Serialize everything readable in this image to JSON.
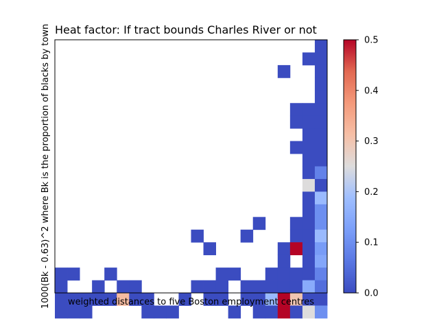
{
  "chart_data": {
    "type": "heatmap",
    "title": "Heat factor: If tract bounds Charles River or not",
    "xlabel": "weighted distances to five Boston employment centres",
    "ylabel": "1000(Bk - 0.63)^2 where Bk is the proportion of blacks by town",
    "n_cols": 22,
    "n_rows": 20,
    "color_range": [
      0,
      0.5
    ],
    "colormap": "coolwarm",
    "colorbar_ticks": [
      "0.0",
      "0.1",
      "0.2",
      "0.3",
      "0.4",
      "0.5"
    ],
    "colorbar_tick_values": [
      0,
      0.1,
      0.2,
      0.3,
      0.4,
      0.5
    ],
    "cells": [
      [
        0,
        21,
        0
      ],
      [
        1,
        20,
        0
      ],
      [
        1,
        21,
        0
      ],
      [
        2,
        18,
        0
      ],
      [
        2,
        21,
        0
      ],
      [
        3,
        21,
        0
      ],
      [
        4,
        21,
        0
      ],
      [
        5,
        19,
        0
      ],
      [
        5,
        20,
        0
      ],
      [
        5,
        21,
        0
      ],
      [
        6,
        19,
        0
      ],
      [
        6,
        20,
        0
      ],
      [
        6,
        21,
        0
      ],
      [
        7,
        20,
        0
      ],
      [
        7,
        21,
        0
      ],
      [
        8,
        19,
        0
      ],
      [
        8,
        20,
        0
      ],
      [
        8,
        21,
        0
      ],
      [
        9,
        20,
        0
      ],
      [
        9,
        21,
        0
      ],
      [
        10,
        20,
        0
      ],
      [
        10,
        21,
        0.08
      ],
      [
        11,
        20,
        0.25
      ],
      [
        11,
        21,
        0
      ],
      [
        12,
        20,
        0
      ],
      [
        12,
        21,
        0.18
      ],
      [
        13,
        20,
        0
      ],
      [
        13,
        21,
        0.1
      ],
      [
        14,
        16,
        0
      ],
      [
        14,
        19,
        0
      ],
      [
        14,
        20,
        0
      ],
      [
        14,
        21,
        0.1
      ],
      [
        15,
        11,
        0
      ],
      [
        15,
        15,
        0
      ],
      [
        15,
        19,
        0
      ],
      [
        15,
        20,
        0
      ],
      [
        15,
        21,
        0.18
      ],
      [
        16,
        12,
        0
      ],
      [
        16,
        18,
        0
      ],
      [
        16,
        19,
        0.5
      ],
      [
        16,
        20,
        0
      ],
      [
        16,
        21,
        0.12
      ],
      [
        17,
        18,
        0
      ],
      [
        17,
        20,
        0
      ],
      [
        17,
        21,
        0.14
      ],
      [
        18,
        0,
        0
      ],
      [
        18,
        1,
        0
      ],
      [
        18,
        4,
        0
      ],
      [
        18,
        13,
        0
      ],
      [
        18,
        14,
        0
      ],
      [
        18,
        17,
        0
      ],
      [
        18,
        18,
        0
      ],
      [
        18,
        19,
        0
      ],
      [
        18,
        20,
        0
      ],
      [
        18,
        21,
        0.08
      ],
      [
        19,
        0,
        0
      ],
      [
        19,
        3,
        0
      ],
      [
        19,
        5,
        0
      ],
      [
        19,
        6,
        0
      ],
      [
        19,
        11,
        0
      ],
      [
        19,
        12,
        0
      ],
      [
        19,
        13,
        0
      ],
      [
        19,
        15,
        0
      ],
      [
        19,
        16,
        0
      ],
      [
        19,
        17,
        0
      ],
      [
        19,
        18,
        0
      ],
      [
        19,
        19,
        0
      ],
      [
        19,
        20,
        0.15
      ],
      [
        19,
        21,
        0.05
      ],
      [
        20,
        0,
        0
      ],
      [
        20,
        1,
        0
      ],
      [
        20,
        2,
        0
      ],
      [
        20,
        3,
        0
      ],
      [
        20,
        4,
        0
      ],
      [
        20,
        5,
        0.32
      ],
      [
        20,
        6,
        0
      ],
      [
        20,
        7,
        0
      ],
      [
        20,
        10,
        0
      ],
      [
        20,
        12,
        0
      ],
      [
        20,
        13,
        0
      ],
      [
        20,
        15,
        0
      ],
      [
        20,
        16,
        0
      ],
      [
        20,
        17,
        0.18
      ],
      [
        20,
        18,
        0.5
      ],
      [
        20,
        19,
        0.3
      ],
      [
        20,
        20,
        0
      ],
      [
        20,
        21,
        0
      ],
      [
        21,
        0,
        0
      ],
      [
        21,
        1,
        0
      ],
      [
        21,
        2,
        0
      ],
      [
        21,
        7,
        0
      ],
      [
        21,
        8,
        0
      ],
      [
        21,
        9,
        0
      ],
      [
        21,
        14,
        0
      ],
      [
        21,
        16,
        0
      ],
      [
        21,
        17,
        0
      ],
      [
        21,
        18,
        0.5
      ],
      [
        21,
        19,
        0
      ],
      [
        21,
        20,
        0.25
      ],
      [
        21,
        21,
        0.1
      ]
    ]
  }
}
